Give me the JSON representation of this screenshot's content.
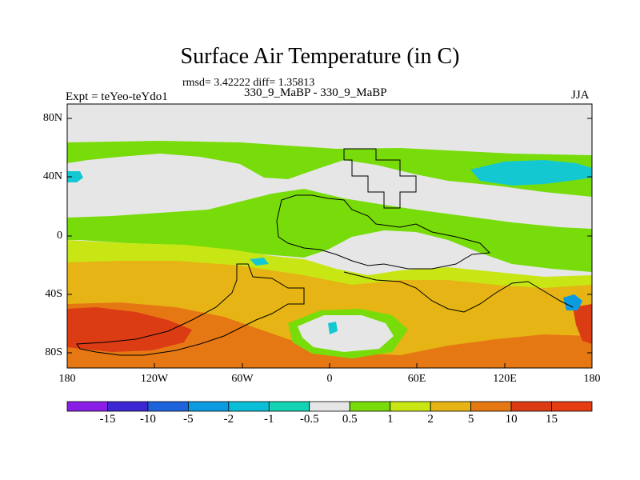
{
  "header": {
    "title": "Surface Air Temperature (in C)",
    "stats": "rmsd= 3.42222 diff= 1.35813",
    "experiment": "Expt = teYeo-teYdo1",
    "case": "330_9_MaBP - 330_9_MaBP",
    "season": "JJA"
  },
  "axes": {
    "y_ticks": [
      "80N",
      "40N",
      "0",
      "40S",
      "80S"
    ],
    "x_ticks": [
      "180",
      "120W",
      "60W",
      "0",
      "60E",
      "120E",
      "180"
    ]
  },
  "colorbar": {
    "labels": [
      "-15",
      "-10",
      "-5",
      "-2",
      "-1",
      "-0.5",
      "0.5",
      "1",
      "2",
      "5",
      "10",
      "15"
    ],
    "colors": [
      "#8a1ee6",
      "#3c28d2",
      "#1e64dc",
      "#0a9be1",
      "#0abed7",
      "#14d2b4",
      "#e6e6e6",
      "#78dc0a",
      "#c8e614",
      "#e6b414",
      "#e67814",
      "#dc3c14",
      "#e63c14"
    ]
  },
  "map": {
    "colors": {
      "neutral": "#e6e6e6",
      "green": "#78dc0a",
      "yellow": "#c8e614",
      "orange": "#e6b414",
      "dark_orange": "#e67814",
      "red": "#dc3c14",
      "cyan": "#14c8d2",
      "light_blue": "#0abed7"
    }
  }
}
